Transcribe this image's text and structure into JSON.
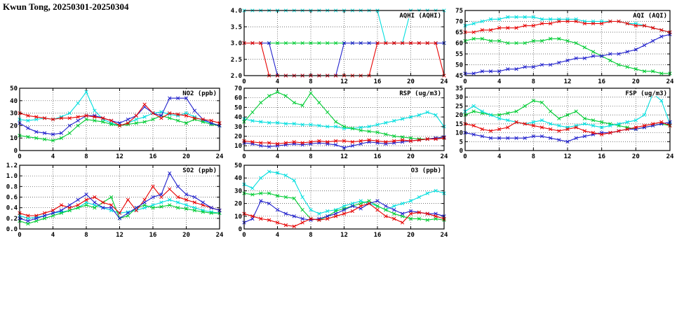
{
  "page": {
    "title": "Kwun Tong, 20250301-20250304"
  },
  "colors": {
    "red": "#e60000",
    "blue": "#2121cc",
    "green": "#00cc33",
    "cyan": "#00dede"
  },
  "chart_data": [
    {
      "id": "aqhi",
      "type": "line",
      "title": "AQHI (AQHI)",
      "xlabel": "",
      "ylabel": "",
      "x_interval_hours": 1,
      "xlim": [
        0,
        24
      ],
      "xticks": [
        0,
        4,
        8,
        12,
        16,
        20,
        24
      ],
      "ylim": [
        2.0,
        4.0
      ],
      "yticks": [
        "2.0",
        "2.5",
        "3.0",
        "3.5",
        "4.0"
      ],
      "grid": true,
      "legend": "none",
      "series": [
        {
          "name": "cyan",
          "color": "cyan",
          "values": [
            4,
            4,
            4,
            4,
            4,
            4,
            4,
            4,
            4,
            4,
            4,
            4,
            4,
            4,
            4,
            4,
            4,
            3,
            3,
            3,
            4,
            4,
            4,
            4,
            4
          ]
        },
        {
          "name": "green",
          "color": "green",
          "values": [
            3,
            3,
            3,
            3,
            3,
            3,
            3,
            3,
            3,
            3,
            3,
            3,
            3,
            3,
            3,
            3,
            3,
            3,
            3,
            3,
            3,
            3,
            3,
            3,
            3
          ]
        },
        {
          "name": "blue",
          "color": "blue",
          "values": [
            3,
            3,
            3,
            3,
            2,
            2,
            2,
            2,
            2,
            2,
            2,
            2,
            3,
            3,
            3,
            3,
            3,
            3,
            3,
            3,
            3,
            3,
            3,
            3,
            3
          ]
        },
        {
          "name": "red",
          "color": "red",
          "values": [
            3,
            3,
            3,
            2,
            2,
            2,
            2,
            2,
            2,
            2,
            2,
            2,
            2,
            2,
            2,
            2,
            3,
            3,
            3,
            3,
            3,
            3,
            3,
            3,
            2
          ]
        }
      ]
    },
    {
      "id": "aqi",
      "type": "line",
      "title": "AQI (AQI)",
      "xlabel": "",
      "ylabel": "",
      "x_interval_hours": 1,
      "xlim": [
        0,
        24
      ],
      "xticks": [
        0,
        4,
        8,
        12,
        16,
        20,
        24
      ],
      "ylim": [
        45,
        75
      ],
      "yticks": [
        "45",
        "50",
        "55",
        "60",
        "65",
        "70",
        "75"
      ],
      "grid": true,
      "legend": "none",
      "series": [
        {
          "name": "cyan",
          "color": "cyan",
          "values": [
            68,
            69,
            70,
            71,
            71,
            72,
            72,
            72,
            72,
            71,
            71,
            71,
            71,
            71,
            70,
            70,
            70,
            70,
            70,
            69,
            69,
            68,
            67,
            66,
            65
          ]
        },
        {
          "name": "green",
          "color": "green",
          "values": [
            61,
            62,
            62,
            61,
            61,
            60,
            60,
            60,
            61,
            61,
            62,
            62,
            61,
            60,
            58,
            56,
            54,
            52,
            50,
            49,
            48,
            47,
            47,
            46,
            46
          ]
        },
        {
          "name": "blue",
          "color": "blue",
          "values": [
            46,
            46,
            47,
            47,
            47,
            48,
            48,
            49,
            49,
            50,
            50,
            51,
            52,
            53,
            53,
            54,
            54,
            55,
            55,
            56,
            57,
            59,
            61,
            63,
            64
          ]
        },
        {
          "name": "red",
          "color": "red",
          "values": [
            65,
            65,
            66,
            66,
            67,
            67,
            67,
            68,
            68,
            69,
            69,
            70,
            70,
            70,
            69,
            69,
            69,
            70,
            70,
            69,
            68,
            68,
            67,
            66,
            65
          ]
        }
      ]
    },
    {
      "id": "no2",
      "type": "line",
      "title": "NO2 (ppb)",
      "xlabel": "",
      "ylabel": "",
      "x_interval_hours": 1,
      "xlim": [
        0,
        24
      ],
      "xticks": [
        0,
        4,
        8,
        12,
        16,
        20,
        24
      ],
      "ylim": [
        0,
        50
      ],
      "yticks": [
        "0",
        "10",
        "20",
        "30",
        "40",
        "50"
      ],
      "grid": true,
      "legend": "none",
      "series": [
        {
          "name": "cyan",
          "color": "cyan",
          "values": [
            25,
            24,
            25,
            26,
            25,
            27,
            30,
            38,
            47,
            32,
            25,
            22,
            20,
            22,
            25,
            27,
            30,
            31,
            29,
            28,
            30,
            27,
            24,
            22,
            20
          ]
        },
        {
          "name": "green",
          "color": "green",
          "values": [
            12,
            11,
            10,
            9,
            8,
            10,
            14,
            20,
            25,
            24,
            23,
            21,
            20,
            21,
            22,
            23,
            25,
            28,
            26,
            24,
            22,
            25,
            23,
            21,
            20
          ]
        },
        {
          "name": "blue",
          "color": "blue",
          "values": [
            22,
            18,
            15,
            14,
            13,
            14,
            20,
            24,
            28,
            28,
            26,
            24,
            22,
            25,
            28,
            35,
            30,
            28,
            42,
            42,
            42,
            32,
            25,
            22,
            20
          ]
        },
        {
          "name": "red",
          "color": "red",
          "values": [
            30,
            28,
            27,
            26,
            25,
            26,
            26,
            27,
            28,
            27,
            26,
            24,
            20,
            22,
            28,
            37,
            30,
            26,
            30,
            29,
            28,
            26,
            25,
            24,
            22
          ]
        }
      ]
    },
    {
      "id": "rsp",
      "type": "line",
      "title": "RSP (ug/m3)",
      "xlabel": "",
      "ylabel": "",
      "x_interval_hours": 1,
      "xlim": [
        0,
        24
      ],
      "xticks": [
        0,
        4,
        8,
        12,
        16,
        20,
        24
      ],
      "ylim": [
        5,
        70
      ],
      "yticks": [
        "10",
        "20",
        "30",
        "40",
        "50",
        "60",
        "70"
      ],
      "grid": true,
      "legend": "none",
      "series": [
        {
          "name": "cyan",
          "color": "cyan",
          "values": [
            38,
            36,
            35,
            34,
            34,
            33,
            33,
            32,
            32,
            31,
            30,
            30,
            28,
            28,
            29,
            30,
            32,
            34,
            36,
            38,
            40,
            42,
            45,
            42,
            30
          ]
        },
        {
          "name": "green",
          "color": "green",
          "values": [
            35,
            45,
            55,
            62,
            66,
            62,
            55,
            52,
            65,
            55,
            45,
            35,
            30,
            28,
            26,
            25,
            24,
            22,
            20,
            19,
            18,
            17,
            17,
            18,
            18
          ]
        },
        {
          "name": "blue",
          "color": "blue",
          "values": [
            13,
            12,
            10,
            9,
            10,
            11,
            12,
            11,
            12,
            13,
            12,
            11,
            8,
            10,
            12,
            14,
            13,
            12,
            13,
            14,
            15,
            16,
            17,
            18,
            19
          ]
        },
        {
          "name": "red",
          "color": "red",
          "values": [
            15,
            14,
            13,
            13,
            12,
            13,
            14,
            13,
            14,
            15,
            14,
            15,
            15,
            14,
            15,
            16,
            15,
            14,
            15,
            16,
            15,
            16,
            17,
            17,
            18
          ]
        }
      ]
    },
    {
      "id": "fsp",
      "type": "line",
      "title": "FSP (ug/m3)",
      "xlabel": "",
      "ylabel": "",
      "x_interval_hours": 1,
      "xlim": [
        0,
        24
      ],
      "xticks": [
        0,
        4,
        8,
        12,
        16,
        20,
        24
      ],
      "ylim": [
        0,
        35
      ],
      "yticks": [
        "0",
        "5",
        "10",
        "15",
        "20",
        "25",
        "30",
        "35"
      ],
      "grid": true,
      "legend": "none",
      "series": [
        {
          "name": "green",
          "color": "green",
          "values": [
            20,
            22,
            21,
            20,
            20,
            21,
            22,
            25,
            28,
            27,
            22,
            18,
            20,
            22,
            18,
            17,
            16,
            15,
            14,
            13,
            12,
            13,
            14,
            15,
            14
          ]
        },
        {
          "name": "cyan",
          "color": "cyan",
          "values": [
            22,
            25,
            22,
            20,
            18,
            17,
            16,
            15,
            16,
            17,
            15,
            14,
            13,
            14,
            15,
            14,
            13,
            14,
            15,
            16,
            17,
            20,
            32,
            28,
            15
          ]
        },
        {
          "name": "blue",
          "color": "blue",
          "values": [
            10,
            9,
            8,
            7,
            7,
            7,
            7,
            7,
            8,
            8,
            7,
            6,
            5,
            7,
            8,
            9,
            10,
            10,
            11,
            12,
            12,
            13,
            14,
            15,
            16
          ]
        },
        {
          "name": "red",
          "color": "red",
          "values": [
            15,
            14,
            12,
            11,
            12,
            13,
            16,
            15,
            14,
            13,
            12,
            11,
            12,
            13,
            11,
            10,
            9,
            10,
            11,
            12,
            13,
            14,
            15,
            16,
            14
          ]
        }
      ]
    },
    {
      "id": "so2",
      "type": "line",
      "title": "SO2 (ppb)",
      "xlabel": "",
      "ylabel": "",
      "x_interval_hours": 1,
      "xlim": [
        0,
        24
      ],
      "xticks": [
        0,
        4,
        8,
        12,
        16,
        20,
        24
      ],
      "ylim": [
        0.0,
        1.2
      ],
      "yticks": [
        "0.0",
        "0.2",
        "0.4",
        "0.6",
        "0.8",
        "1.0",
        "1.2"
      ],
      "grid": true,
      "legend": "none",
      "series": [
        {
          "name": "cyan",
          "color": "cyan",
          "values": [
            0.25,
            0.2,
            0.22,
            0.25,
            0.3,
            0.32,
            0.35,
            0.4,
            0.5,
            0.45,
            0.4,
            0.35,
            0.3,
            0.32,
            0.35,
            0.4,
            0.45,
            0.5,
            0.55,
            0.5,
            0.45,
            0.4,
            0.35,
            0.32,
            0.3
          ]
        },
        {
          "name": "green",
          "color": "green",
          "values": [
            0.15,
            0.1,
            0.15,
            0.2,
            0.25,
            0.3,
            0.35,
            0.4,
            0.45,
            0.4,
            0.5,
            0.6,
            0.2,
            0.25,
            0.4,
            0.45,
            0.4,
            0.42,
            0.45,
            0.4,
            0.38,
            0.35,
            0.32,
            0.3,
            0.3
          ]
        },
        {
          "name": "red",
          "color": "red",
          "values": [
            0.3,
            0.25,
            0.25,
            0.3,
            0.35,
            0.45,
            0.4,
            0.45,
            0.55,
            0.6,
            0.5,
            0.45,
            0.3,
            0.55,
            0.35,
            0.55,
            0.8,
            0.6,
            0.75,
            0.6,
            0.55,
            0.5,
            0.45,
            0.4,
            0.35
          ]
        },
        {
          "name": "blue",
          "color": "blue",
          "values": [
            0.2,
            0.15,
            0.2,
            0.25,
            0.3,
            0.35,
            0.45,
            0.55,
            0.65,
            0.5,
            0.4,
            0.4,
            0.2,
            0.3,
            0.4,
            0.5,
            0.6,
            0.65,
            1.05,
            0.8,
            0.65,
            0.6,
            0.5,
            0.4,
            0.35
          ]
        }
      ]
    },
    {
      "id": "o3",
      "type": "line",
      "title": "O3 (ppb)",
      "xlabel": "",
      "ylabel": "",
      "x_interval_hours": 1,
      "xlim": [
        0,
        24
      ],
      "xticks": [
        0,
        4,
        8,
        12,
        16,
        20,
        24
      ],
      "ylim": [
        0,
        50
      ],
      "yticks": [
        "0",
        "10",
        "20",
        "30",
        "40",
        "50"
      ],
      "grid": true,
      "legend": "none",
      "series": [
        {
          "name": "cyan",
          "color": "cyan",
          "values": [
            35,
            32,
            40,
            45,
            44,
            42,
            38,
            25,
            15,
            12,
            14,
            15,
            18,
            20,
            22,
            20,
            18,
            15,
            18,
            20,
            22,
            25,
            28,
            30,
            28
          ]
        },
        {
          "name": "green",
          "color": "green",
          "values": [
            28,
            27,
            28,
            28,
            26,
            25,
            24,
            15,
            8,
            7,
            10,
            14,
            16,
            18,
            20,
            22,
            18,
            15,
            12,
            10,
            8,
            8,
            7,
            8,
            7
          ]
        },
        {
          "name": "blue",
          "color": "blue",
          "values": [
            5,
            8,
            22,
            20,
            15,
            12,
            10,
            8,
            7,
            8,
            10,
            12,
            15,
            18,
            16,
            20,
            22,
            18,
            15,
            12,
            14,
            13,
            12,
            12,
            10
          ]
        },
        {
          "name": "red",
          "color": "red",
          "values": [
            12,
            10,
            8,
            7,
            5,
            3,
            2,
            5,
            8,
            7,
            8,
            10,
            12,
            14,
            18,
            20,
            15,
            10,
            8,
            5,
            12,
            13,
            12,
            10,
            8
          ]
        }
      ]
    }
  ]
}
